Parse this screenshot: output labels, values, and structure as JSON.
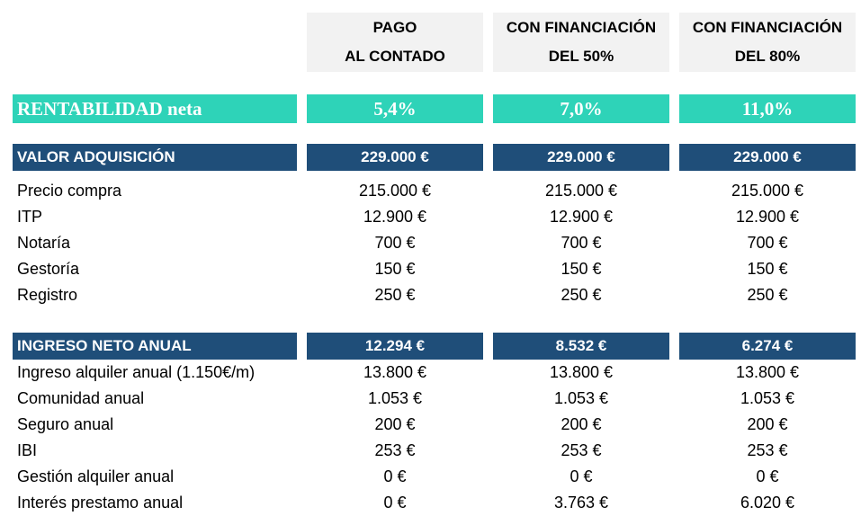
{
  "columns": [
    {
      "line1": "PAGO",
      "line2": "AL CONTADO"
    },
    {
      "line1": "CON FINANCIACIÓN",
      "line2": "DEL 50%"
    },
    {
      "line1": "CON FINANCIACIÓN",
      "line2": "DEL 80%"
    }
  ],
  "rentabilidad": {
    "label": "RENTABILIDAD neta",
    "values": [
      "5,4%",
      "7,0%",
      "11,0%"
    ]
  },
  "valor_adquisicion": {
    "label": "VALOR ADQUISICIÓN",
    "totals": [
      "229.000 €",
      "229.000 €",
      "229.000 €"
    ],
    "rows": [
      {
        "label": "Precio compra",
        "values": [
          "215.000 €",
          "215.000 €",
          "215.000 €"
        ]
      },
      {
        "label": "ITP",
        "values": [
          "12.900 €",
          "12.900 €",
          "12.900 €"
        ]
      },
      {
        "label": "Notaría",
        "values": [
          "700 €",
          "700 €",
          "700 €"
        ]
      },
      {
        "label": "Gestoría",
        "values": [
          "150 €",
          "150 €",
          "150 €"
        ]
      },
      {
        "label": "Registro",
        "values": [
          "250 €",
          "250 €",
          "250 €"
        ]
      }
    ]
  },
  "ingreso_neto": {
    "label": "INGRESO NETO ANUAL",
    "totals": [
      "12.294 €",
      "8.532 €",
      "6.274 €"
    ],
    "rows": [
      {
        "label": "Ingreso alquiler anual (1.150€/m)",
        "values": [
          "13.800 €",
          "13.800 €",
          "13.800 €"
        ]
      },
      {
        "label": "Comunidad anual",
        "values": [
          "1.053 €",
          "1.053 €",
          "1.053 €"
        ]
      },
      {
        "label": "Seguro anual",
        "values": [
          "200 €",
          "200 €",
          "200 €"
        ]
      },
      {
        "label": "IBI",
        "values": [
          "253 €",
          "253 €",
          "253 €"
        ]
      },
      {
        "label": "Gestión alquiler anual",
        "values": [
          "0 €",
          "0 €",
          "0 €"
        ]
      },
      {
        "label": "Interés prestamo anual",
        "values": [
          "0 €",
          "3.763 €",
          "6.020 €"
        ]
      }
    ]
  },
  "colors": {
    "header_bg": "#f2f2f2",
    "rentabilidad_bg": "#2ed3b8",
    "section_bg": "#1f4e79",
    "section_text": "#ffffff"
  }
}
